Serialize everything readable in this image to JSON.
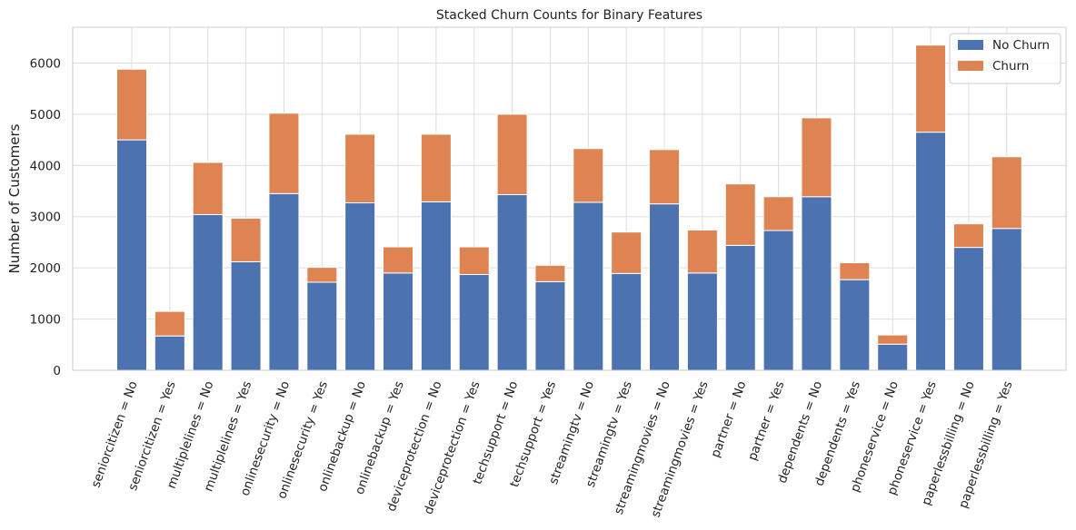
{
  "chart_data": {
    "type": "bar",
    "stacked": true,
    "title": "Stacked Churn Counts for Binary Features",
    "xlabel": "",
    "ylabel": "Number of Customers",
    "ylim": [
      0,
      6700
    ],
    "yticks": [
      0,
      1000,
      2000,
      3000,
      4000,
      5000,
      6000
    ],
    "grid": true,
    "legend_position": "top-right",
    "categories": [
      "seniorcitizen = No",
      "seniorcitizen = Yes",
      "multiplelines = No",
      "multiplelines = Yes",
      "onlinesecurity = No",
      "onlinesecurity = Yes",
      "onlinebackup = No",
      "onlinebackup = Yes",
      "deviceprotection = No",
      "deviceprotection = Yes",
      "techsupport = No",
      "techsupport = Yes",
      "streamingtv = No",
      "streamingtv = Yes",
      "streamingmovies = No",
      "streamingmovies = Yes",
      "partner = No",
      "partner = Yes",
      "dependents = No",
      "dependents = Yes",
      "phoneservice = No",
      "phoneservice = Yes",
      "paperlessbilling = No",
      "paperlessbilling = Yes"
    ],
    "series": [
      {
        "name": "No Churn",
        "color": "#4c72b0",
        "values": [
          4500,
          670,
          3040,
          2120,
          3450,
          1720,
          3270,
          1900,
          3290,
          1870,
          3430,
          1730,
          3280,
          1890,
          3250,
          1900,
          2440,
          2730,
          3390,
          1770,
          510,
          4650,
          2400,
          2770
        ]
      },
      {
        "name": "Churn",
        "color": "#dd8452",
        "values": [
          1380,
          480,
          1020,
          850,
          1570,
          290,
          1340,
          510,
          1320,
          540,
          1570,
          320,
          1050,
          810,
          1060,
          840,
          1200,
          660,
          1540,
          330,
          180,
          1700,
          460,
          1400
        ]
      }
    ]
  }
}
